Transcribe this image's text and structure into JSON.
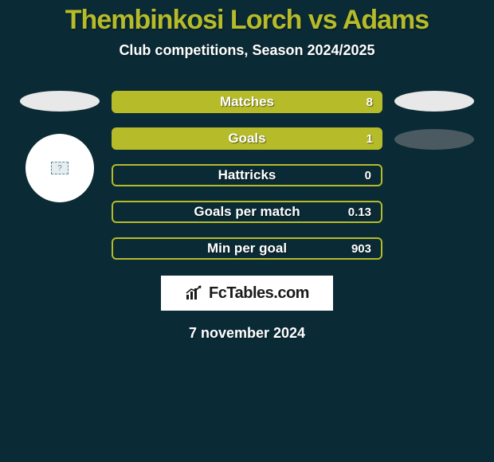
{
  "background_color": "#0a2a35",
  "title": {
    "text": "Thembinkosi Lorch vs Adams",
    "color": "#b6bb29",
    "fontsize": 34
  },
  "subtitle": {
    "text": "Club competitions, Season 2024/2025",
    "color": "#ffffff",
    "fontsize": 18
  },
  "left_decor": {
    "ellipse_color": "#e8e8e8",
    "circle_color": "#ffffff",
    "inner_glyph": "?"
  },
  "right_decor": {
    "ellipse1_color": "#e8e8e8",
    "ellipse2_color": "#4a5a60"
  },
  "bars": {
    "solid_fill": "#b6bb29",
    "outline_color": "#b6bb29",
    "label_color": "#ffffff",
    "label_fontsize": 17,
    "value_fontsize": 15,
    "items": [
      {
        "label": "Matches",
        "value": "8",
        "style": "solid"
      },
      {
        "label": "Goals",
        "value": "1",
        "style": "solid"
      },
      {
        "label": "Hattricks",
        "value": "0",
        "style": "outline"
      },
      {
        "label": "Goals per match",
        "value": "0.13",
        "style": "outline"
      },
      {
        "label": "Min per goal",
        "value": "903",
        "style": "outline"
      }
    ]
  },
  "brand": {
    "text": "FcTables.com",
    "box_bg": "#ffffff",
    "text_color": "#1a1a1a",
    "fontsize": 20
  },
  "date": {
    "text": "7 november 2024",
    "color": "#ffffff",
    "fontsize": 18
  }
}
